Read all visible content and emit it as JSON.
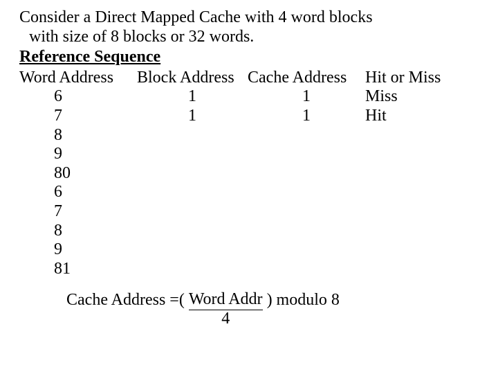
{
  "intro": {
    "line1": "Consider a Direct Mapped Cache with 4 word blocks",
    "line2": "with size of 8 blocks or 32 words.",
    "ref_heading": "Reference Sequence"
  },
  "headers": {
    "word": "Word Address",
    "block": "Block Address",
    "cache": "Cache Address",
    "hit": "Hit or Miss"
  },
  "rows": [
    {
      "word": "6",
      "block": "1",
      "cache": "1",
      "hit": "Miss"
    },
    {
      "word": "7",
      "block": "1",
      "cache": "1",
      "hit": "Hit"
    },
    {
      "word": "8",
      "block": "",
      "cache": "",
      "hit": ""
    },
    {
      "word": "9",
      "block": "",
      "cache": "",
      "hit": ""
    },
    {
      "word": "80",
      "block": "",
      "cache": "",
      "hit": ""
    },
    {
      "word": "6",
      "block": "",
      "cache": "",
      "hit": ""
    },
    {
      "word": "7",
      "block": "",
      "cache": "",
      "hit": ""
    },
    {
      "word": "8",
      "block": "",
      "cache": "",
      "hit": ""
    },
    {
      "word": "9",
      "block": "",
      "cache": "",
      "hit": ""
    },
    {
      "word": "81",
      "block": "",
      "cache": "",
      "hit": ""
    }
  ],
  "formula": {
    "lhs": "Cache Address =(",
    "num": " Word Addr ",
    "den": "4",
    "rhs": ") modulo 8"
  }
}
